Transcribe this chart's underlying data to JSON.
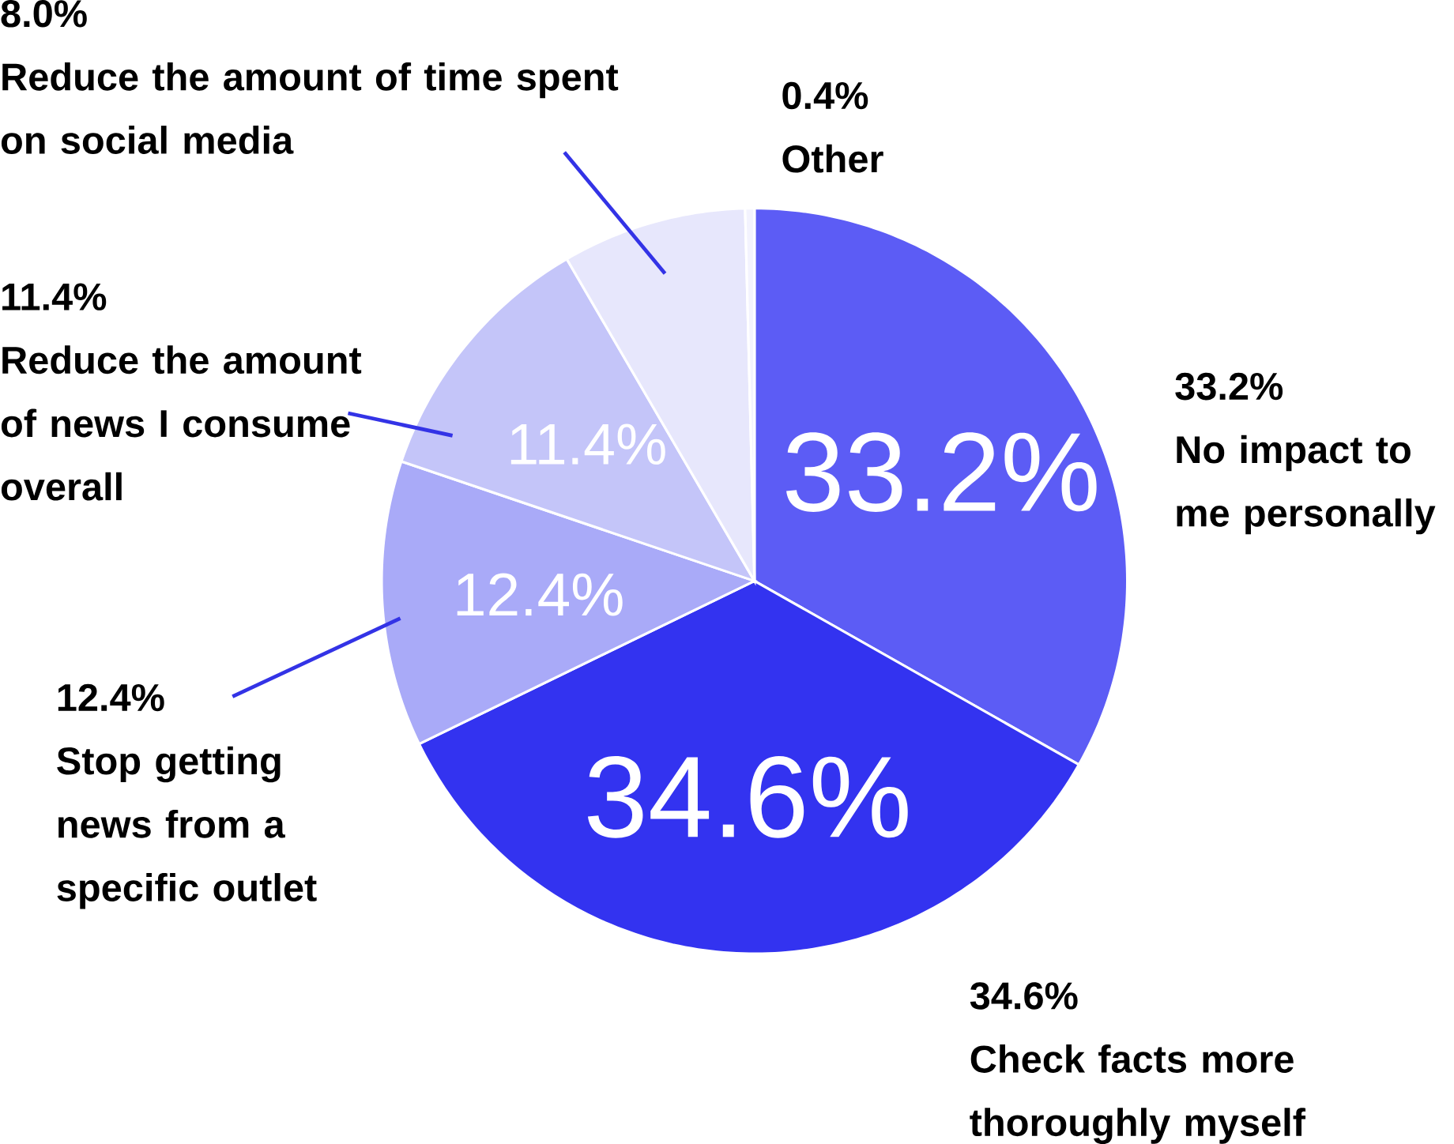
{
  "chart_data": {
    "type": "pie",
    "categories": [
      "No impact to me personally",
      "Check facts more thoroughly myself",
      "Stop getting news from a specific outlet",
      "Reduce the amount of news I consume overall",
      "Reduce the amount of time spent on social media",
      "Other"
    ],
    "values": [
      33.2,
      34.6,
      12.4,
      11.4,
      8.0,
      0.4
    ],
    "colors": [
      "#5c5cf5",
      "#3333f0",
      "#a9aaf8",
      "#c4c5f9",
      "#e7e7fc",
      "#f3f3fe"
    ],
    "value_labels": [
      "33.2%",
      "34.6%",
      "12.4%",
      "11.4%",
      "8.0%",
      "0.4%"
    ]
  }
}
